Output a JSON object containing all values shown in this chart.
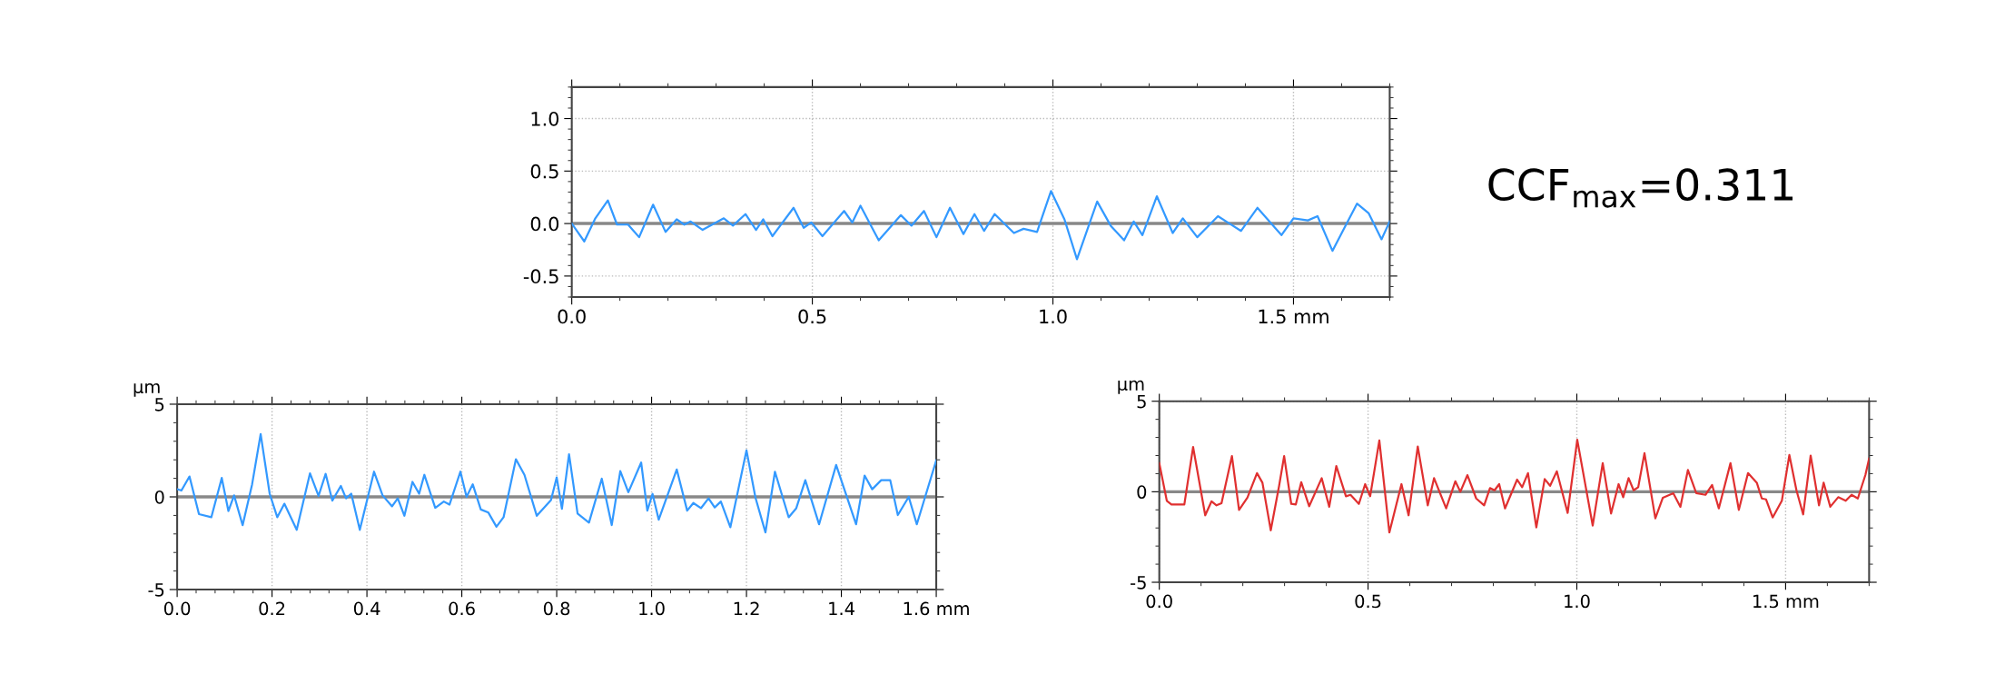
{
  "chart_data": [
    {
      "type": "line",
      "x": [
        0,
        0.026,
        0.049,
        0.075,
        0.094,
        0.117,
        0.14,
        0.169,
        0.195,
        0.218,
        0.234,
        0.247,
        0.272,
        0.316,
        0.335,
        0.361,
        0.383,
        0.398,
        0.417,
        0.461,
        0.482,
        0.498,
        0.521,
        0.566,
        0.583,
        0.6,
        0.638,
        0.684,
        0.706,
        0.732,
        0.758,
        0.786,
        0.814,
        0.837,
        0.857,
        0.879,
        0.919,
        0.939,
        0.967,
        0.996,
        1.024,
        1.05,
        1.092,
        1.12,
        1.148,
        1.168,
        1.186,
        1.216,
        1.249,
        1.27,
        1.3,
        1.343,
        1.367,
        1.391,
        1.425,
        1.475,
        1.5,
        1.53,
        1.55,
        1.581,
        1.632,
        1.656,
        1.683,
        1.7
      ],
      "series": [
        {
          "color": "#3399ff",
          "values": [
            0,
            -0.17,
            0.05,
            0.22,
            -0.01,
            -0.01,
            -0.13,
            0.18,
            -0.08,
            0.04,
            -0.01,
            0.02,
            -0.06,
            0.05,
            -0.02,
            0.09,
            -0.06,
            0.04,
            -0.12,
            0.15,
            -0.04,
            0.01,
            -0.12,
            0.12,
            0.01,
            0.17,
            -0.16,
            0.08,
            -0.02,
            0.12,
            -0.13,
            0.15,
            -0.1,
            0.09,
            -0.07,
            0.09,
            -0.09,
            -0.05,
            -0.08,
            0.31,
            0.04,
            -0.34,
            0.21,
            -0.02,
            -0.16,
            0.02,
            -0.11,
            0.26,
            -0.09,
            0.05,
            -0.13,
            0.07,
            0.0,
            -0.07,
            0.15,
            -0.11,
            0.05,
            0.03,
            0.07,
            -0.26,
            0.19,
            0.1,
            -0.15,
            0.02
          ]
        }
      ],
      "xlim": [
        0,
        1.7
      ],
      "ylim": [
        -0.7,
        1.3
      ],
      "xticks": [
        {
          "value": 0,
          "label": "0.0"
        },
        0.5,
        {
          "value": 1,
          "label": "1.0"
        },
        {
          "value": 1.5,
          "label": "1.5 mm"
        }
      ],
      "yticks": [
        -0.5,
        {
          "value": 0,
          "label": "0.0"
        },
        0.5,
        {
          "value": 1,
          "label": "1.0"
        }
      ],
      "grid": true,
      "ref_lines": [
        {
          "axis": "y",
          "value": 0,
          "color": "#888888"
        }
      ],
      "annotations": [
        "CCF$_{max}$=0.311"
      ]
    },
    {
      "type": "line",
      "x": [
        0,
        0.009,
        0.026,
        0.046,
        0.072,
        0.094,
        0.108,
        0.12,
        0.138,
        0.158,
        0.176,
        0.195,
        0.211,
        0.226,
        0.252,
        0.28,
        0.298,
        0.313,
        0.327,
        0.345,
        0.356,
        0.367,
        0.385,
        0.415,
        0.433,
        0.453,
        0.465,
        0.479,
        0.496,
        0.51,
        0.521,
        0.544,
        0.562,
        0.574,
        0.597,
        0.61,
        0.623,
        0.64,
        0.656,
        0.673,
        0.688,
        0.714,
        0.732,
        0.758,
        0.788,
        0.8,
        0.811,
        0.826,
        0.844,
        0.868,
        0.895,
        0.916,
        0.934,
        0.951,
        0.978,
        0.991,
        1.002,
        1.015,
        1.053,
        1.075,
        1.088,
        1.104,
        1.12,
        1.133,
        1.146,
        1.166,
        1.2,
        1.219,
        1.24,
        1.26,
        1.289,
        1.305,
        1.324,
        1.353,
        1.389,
        1.431,
        1.449,
        1.465,
        1.484,
        1.503,
        1.519,
        1.542,
        1.559,
        1.6
      ],
      "series": [
        {
          "color": "#3399ff",
          "values": [
            0.42,
            0.34,
            1.1,
            -0.93,
            -1.1,
            1.02,
            -0.76,
            0.08,
            -1.53,
            0.68,
            3.39,
            0.17,
            -1.1,
            -0.37,
            -1.78,
            1.27,
            0.05,
            1.24,
            -0.2,
            0.59,
            -0.08,
            0.17,
            -1.78,
            1.36,
            0.08,
            -0.51,
            -0.08,
            -1.02,
            0.81,
            0.17,
            1.19,
            -0.59,
            -0.25,
            -0.42,
            1.36,
            0.0,
            0.68,
            -0.68,
            -0.85,
            -1.61,
            -1.1,
            2.03,
            1.19,
            -1.02,
            -0.17,
            1.05,
            -0.64,
            2.3,
            -0.9,
            -1.39,
            0.98,
            -1.52,
            1.39,
            0.25,
            1.85,
            -0.74,
            0.16,
            -1.23,
            1.48,
            -0.74,
            -0.33,
            -0.61,
            -0.08,
            -0.57,
            -0.25,
            -1.64,
            2.51,
            -0.05,
            -1.92,
            1.36,
            -1.1,
            -0.61,
            0.9,
            -1.48,
            1.72,
            -1.48,
            1.15,
            0.41,
            0.9,
            0.9,
            -0.98,
            0.0,
            -1.48,
            1.97
          ]
        }
      ],
      "xlim": [
        0,
        1.6
      ],
      "ylim": [
        -5,
        5
      ],
      "xticks": [
        {
          "value": 0,
          "label": "0.0"
        },
        0.2,
        0.4,
        0.6,
        0.8,
        {
          "value": 1,
          "label": "1.0"
        },
        1.2,
        1.4,
        {
          "value": 1.6,
          "label": "1.6 mm"
        }
      ],
      "yticks": [
        -5,
        0,
        5
      ],
      "ylabel": "µm",
      "grid": true,
      "ref_lines": [
        {
          "axis": "y",
          "value": 0,
          "color": "#888888"
        }
      ]
    },
    {
      "type": "line",
      "x": [
        0,
        0.018,
        0.029,
        0.06,
        0.081,
        0.11,
        0.125,
        0.137,
        0.149,
        0.174,
        0.191,
        0.211,
        0.234,
        0.247,
        0.267,
        0.287,
        0.299,
        0.316,
        0.327,
        0.34,
        0.359,
        0.389,
        0.407,
        0.424,
        0.447,
        0.458,
        0.478,
        0.493,
        0.505,
        0.527,
        0.551,
        0.58,
        0.597,
        0.619,
        0.643,
        0.658,
        0.687,
        0.709,
        0.721,
        0.738,
        0.759,
        0.778,
        0.792,
        0.803,
        0.814,
        0.828,
        0.857,
        0.869,
        0.883,
        0.903,
        0.923,
        0.936,
        0.952,
        0.978,
        1.001,
        1.038,
        1.062,
        1.082,
        1.1,
        1.111,
        1.124,
        1.136,
        1.147,
        1.162,
        1.188,
        1.206,
        1.231,
        1.248,
        1.266,
        1.286,
        1.308,
        1.324,
        1.34,
        1.368,
        1.388,
        1.41,
        1.431,
        1.443,
        1.453,
        1.469,
        1.491,
        1.509,
        1.526,
        1.542,
        1.56,
        1.58,
        1.591,
        1.607,
        1.626,
        1.644,
        1.658,
        1.673,
        1.691,
        1.7
      ],
      "series": [
        {
          "color": "#e03030",
          "values": [
            1.58,
            -0.5,
            -0.7,
            -0.7,
            2.47,
            -1.3,
            -0.53,
            -0.75,
            -0.63,
            1.97,
            -1.0,
            -0.33,
            1.03,
            0.5,
            -2.13,
            0.33,
            1.97,
            -0.67,
            -0.7,
            0.53,
            -0.8,
            0.75,
            -0.83,
            1.42,
            -0.25,
            -0.17,
            -0.67,
            0.42,
            -0.25,
            2.83,
            -2.25,
            0.42,
            -1.3,
            2.5,
            -0.75,
            0.75,
            -0.92,
            0.58,
            0.0,
            0.92,
            -0.37,
            -0.75,
            0.2,
            0.08,
            0.42,
            -0.92,
            0.67,
            0.25,
            1.03,
            -1.97,
            0.7,
            0.33,
            1.13,
            -1.17,
            2.87,
            -1.87,
            1.58,
            -1.2,
            0.42,
            -0.3,
            0.75,
            0.08,
            0.25,
            2.13,
            -1.47,
            -0.33,
            -0.08,
            -0.83,
            1.2,
            -0.08,
            -0.17,
            0.37,
            -0.92,
            1.58,
            -1.0,
            1.03,
            0.5,
            -0.37,
            -0.42,
            -1.42,
            -0.5,
            2.03,
            0.08,
            -1.25,
            2.0,
            -0.75,
            0.5,
            -0.83,
            -0.3,
            -0.5,
            -0.17,
            -0.37,
            0.92,
            1.83
          ]
        }
      ],
      "xlim": [
        0,
        1.7
      ],
      "ylim": [
        -5,
        5
      ],
      "xticks": [
        {
          "value": 0,
          "label": "0.0"
        },
        0.5,
        {
          "value": 1,
          "label": "1.0"
        },
        {
          "value": 1.5,
          "label": "1.5 mm"
        }
      ],
      "yticks": [
        -5,
        0,
        5
      ],
      "ylabel": "µm",
      "grid": true,
      "ref_lines": [
        {
          "axis": "y",
          "value": 0,
          "color": "#888888"
        }
      ]
    }
  ]
}
